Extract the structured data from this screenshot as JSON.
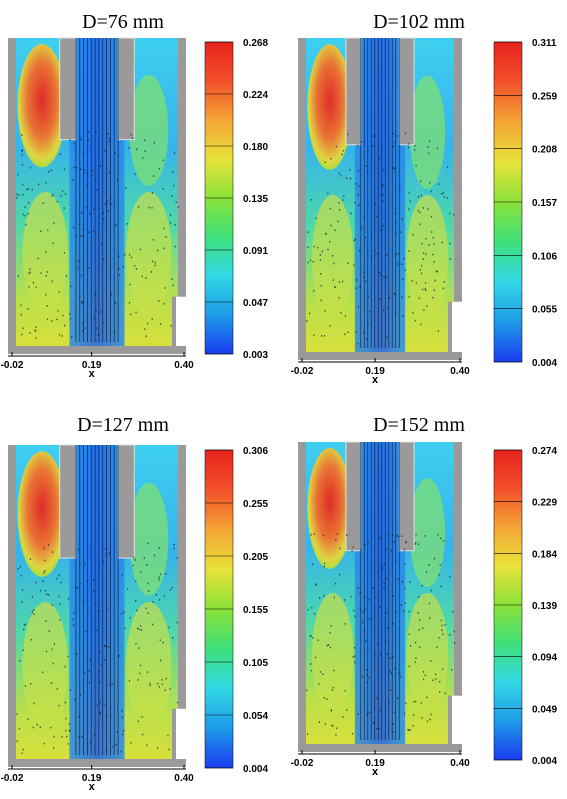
{
  "figure": {
    "colormap": [
      "#1a3cf0",
      "#1e9be8",
      "#32d8e6",
      "#3ee07a",
      "#8be23a",
      "#e8e23a",
      "#f4a536",
      "#f2502a",
      "#e8231e"
    ]
  },
  "chart_data": [
    {
      "type": "heatmap",
      "title": "D=76 mm",
      "xlabel": "x",
      "x_ticks": [
        "-0.02",
        "0.19",
        "0.40"
      ],
      "colorbar": {
        "ticks": [
          "0.268",
          "0.224",
          "0.180",
          "0.135",
          "0.091",
          "0.047",
          "0.003"
        ],
        "min": 0.003,
        "max": 0.268
      }
    },
    {
      "type": "heatmap",
      "title": "D=102 mm",
      "xlabel": "x",
      "x_ticks": [
        "-0.02",
        "0.19",
        "0.40"
      ],
      "colorbar": {
        "ticks": [
          "0.311",
          "0.259",
          "0.208",
          "0.157",
          "0.106",
          "0.055",
          "0.004"
        ],
        "min": 0.004,
        "max": 0.311
      }
    },
    {
      "type": "heatmap",
      "title": "D=127 mm",
      "xlabel": "x",
      "x_ticks": [
        "-0.02",
        "0.19",
        "0.40"
      ],
      "colorbar": {
        "ticks": [
          "0.306",
          "0.255",
          "0.205",
          "0.155",
          "0.105",
          "0.054",
          "0.004"
        ],
        "min": 0.004,
        "max": 0.306
      }
    },
    {
      "type": "heatmap",
      "title": "D=152 mm",
      "xlabel": "x",
      "x_ticks": [
        "-0.02",
        "0.19",
        "0.40"
      ],
      "colorbar": {
        "ticks": [
          "0.274",
          "0.229",
          "0.184",
          "0.139",
          "0.094",
          "0.049",
          "0.004"
        ],
        "min": 0.004,
        "max": 0.274
      }
    }
  ]
}
